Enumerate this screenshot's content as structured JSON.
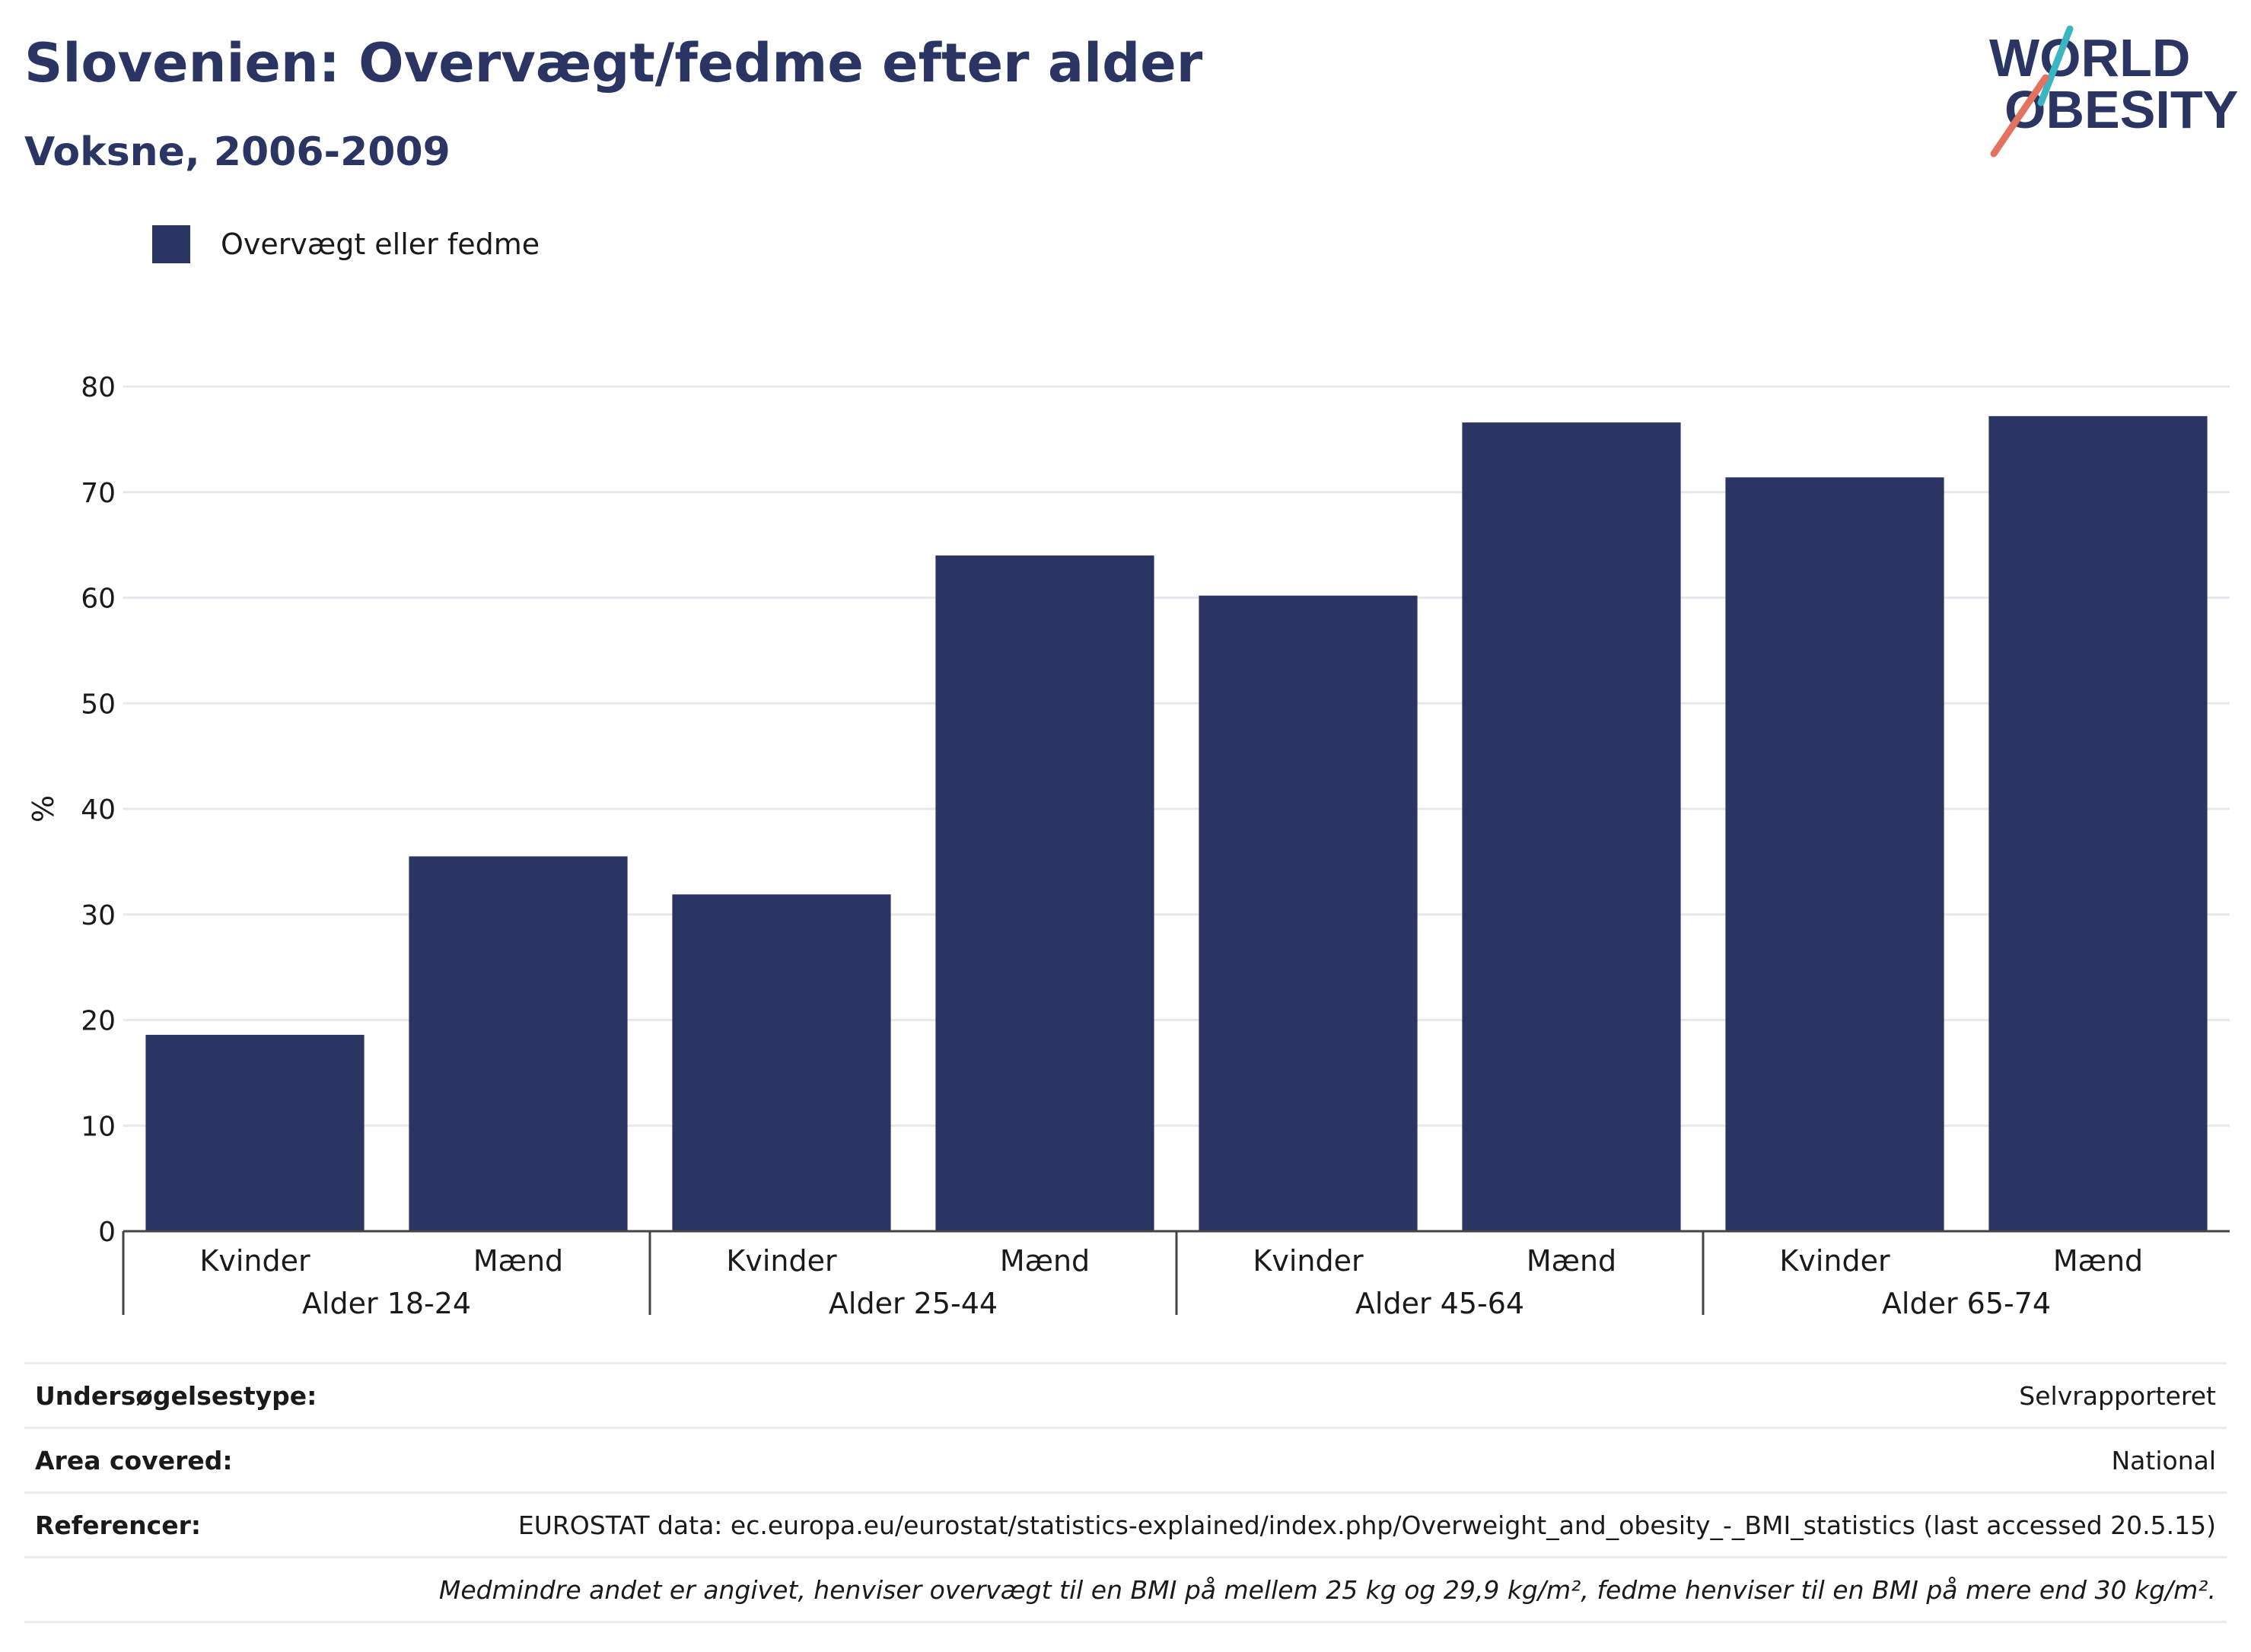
{
  "header": {
    "title": "Slovenien: Overvægt/fedme efter alder",
    "subtitle": "Voksne, 2006-2009"
  },
  "logo": {
    "line1": "WORLD",
    "line2": "OBESITY",
    "accent_teal": "#3bb5c2",
    "accent_coral": "#e2735e",
    "color": "#2a3563"
  },
  "legend": {
    "label": "Overvægt eller fedme",
    "color": "#2a3563"
  },
  "chart_data": {
    "type": "bar",
    "ylabel": "%",
    "ylim": [
      0,
      80
    ],
    "yticks": [
      0,
      10,
      20,
      30,
      40,
      50,
      60,
      70,
      80
    ],
    "grid": true,
    "groups": [
      {
        "label": "Alder 18-24",
        "categories": [
          "Kvinder",
          "Mænd"
        ],
        "values": [
          18.6,
          35.5
        ]
      },
      {
        "label": "Alder 25-44",
        "categories": [
          "Kvinder",
          "Mænd"
        ],
        "values": [
          31.9,
          64.0
        ]
      },
      {
        "label": "Alder 45-64",
        "categories": [
          "Kvinder",
          "Mænd"
        ],
        "values": [
          60.2,
          76.6
        ]
      },
      {
        "label": "Alder 65-74",
        "categories": [
          "Kvinder",
          "Mænd"
        ],
        "values": [
          71.4,
          77.2
        ]
      }
    ],
    "series": [
      {
        "name": "Overvægt eller fedme",
        "color": "#2a3563"
      }
    ]
  },
  "info": {
    "rows": [
      {
        "key": "Undersøgelsestype:",
        "value": "Selvrapporteret"
      },
      {
        "key": "Area covered:",
        "value": "National"
      },
      {
        "key": "Referencer:",
        "value": "EUROSTAT data: ec.europa.eu/eurostat/statistics-explained/index.php/Overweight_and_obesity_-_BMI_statistics (last accessed 20.5.15)"
      }
    ],
    "note": "Medmindre andet er angivet, henviser overvægt til en BMI på mellem 25 kg og 29,9 kg/m², fedme henviser til en BMI på mere end 30 kg/m²."
  }
}
